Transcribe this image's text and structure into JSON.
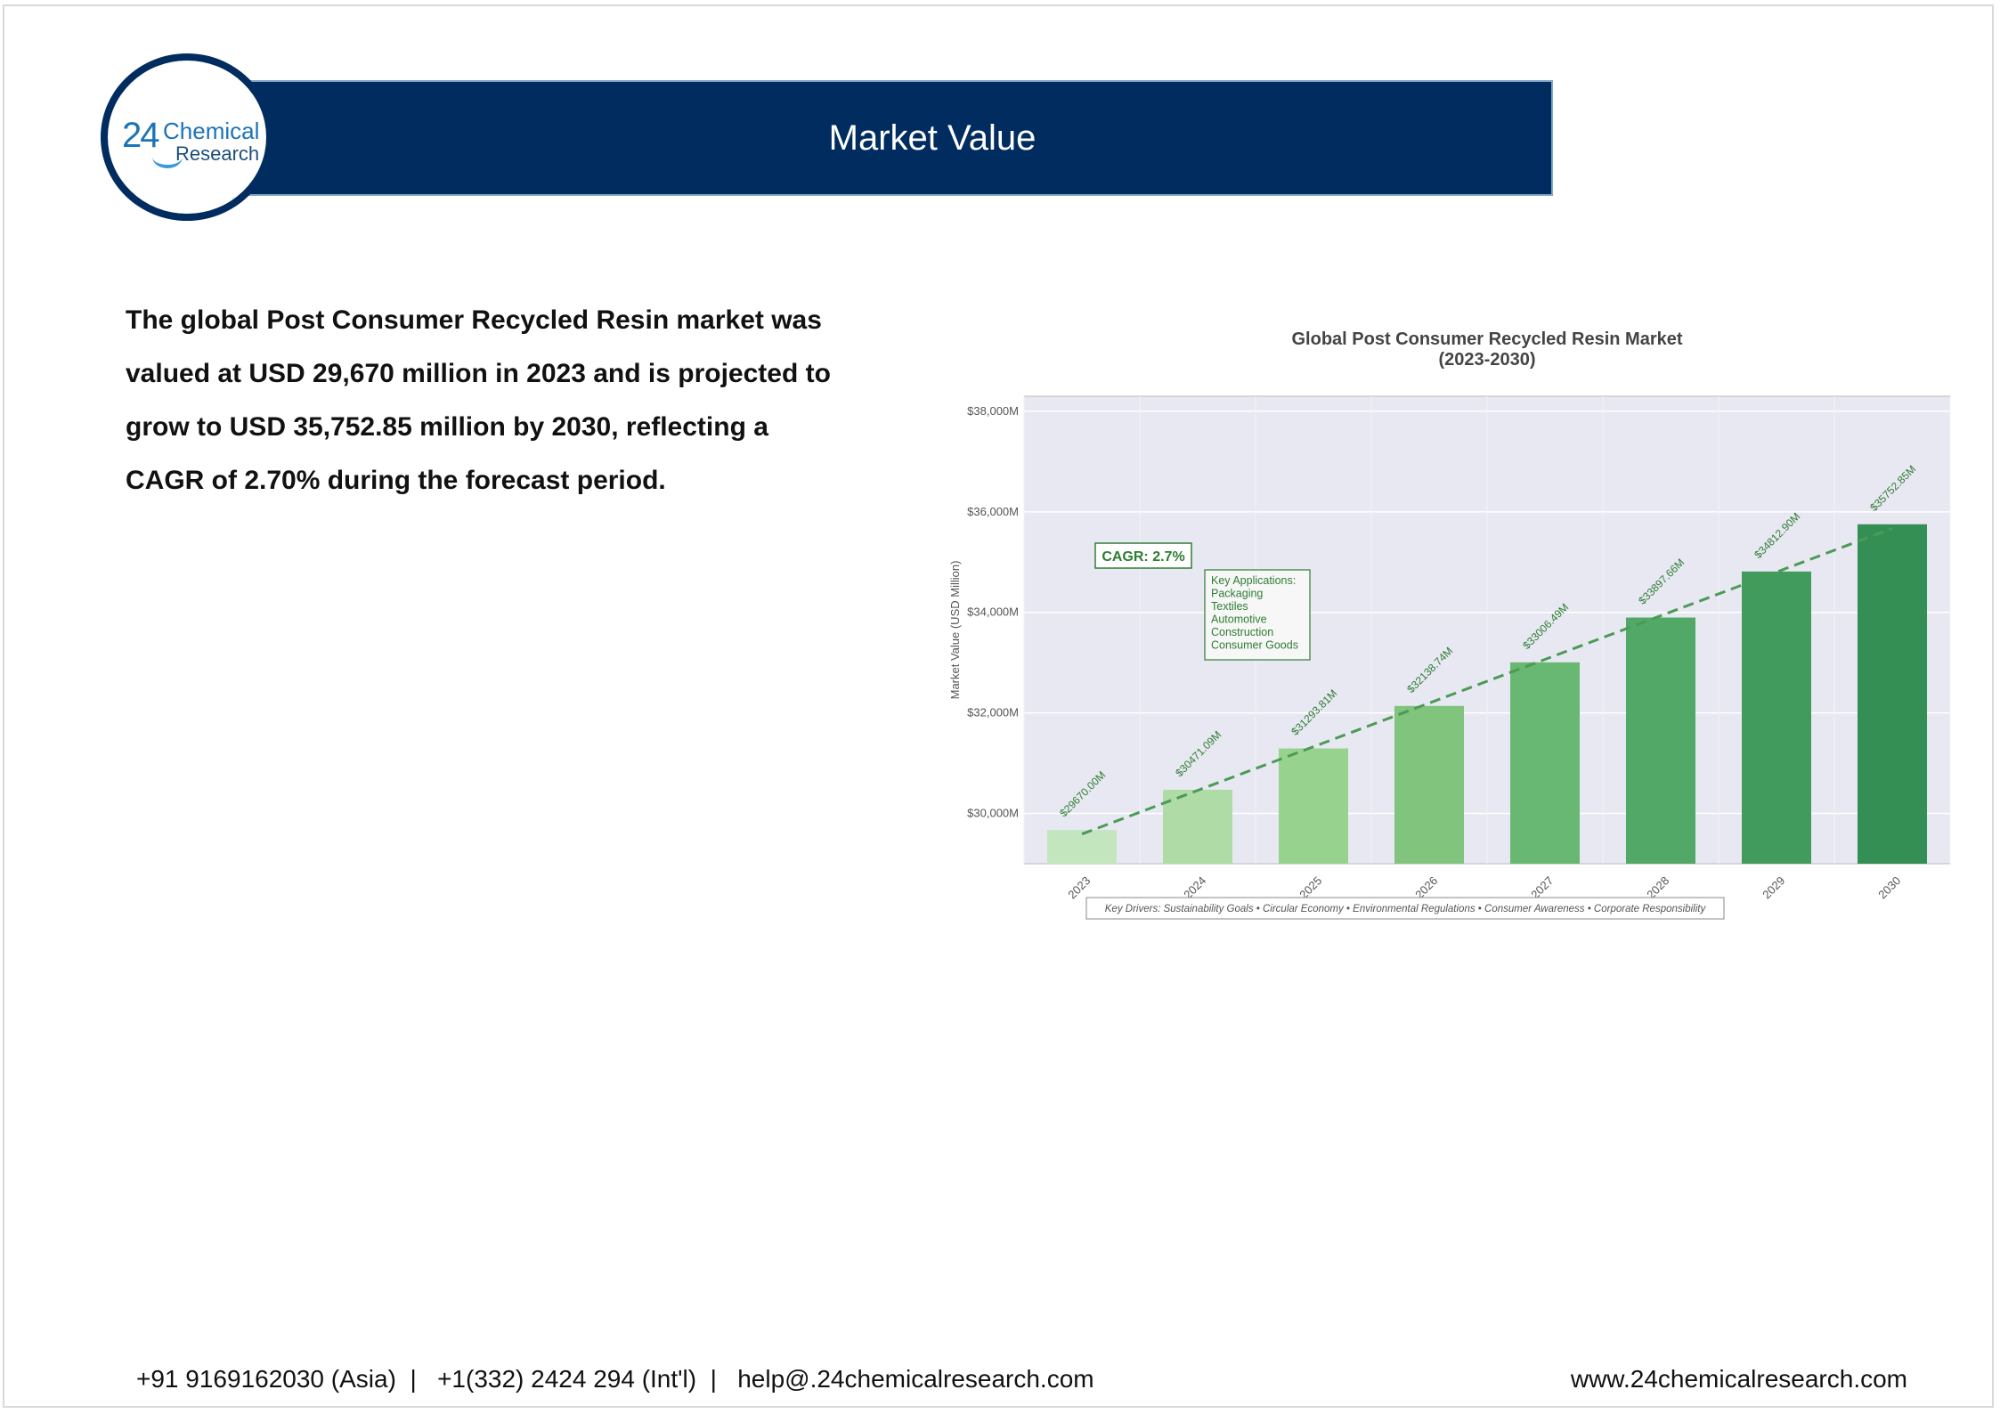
{
  "header": {
    "title": "Market Value"
  },
  "logo": {
    "number": "24",
    "word1": "Chemical",
    "word2": "Research"
  },
  "summary": "The global Post Consumer Recycled Resin market was valued at USD 29,670 million in 2023 and is projected to grow to USD 35,752.85 million by 2030, reflecting a CAGR of 2.70% during the forecast period.",
  "footer": {
    "contact": "+91 9169162030 (Asia)  |   +1(332) 2424 294 (Int'l)  |   help@.24chemicalresearch.com",
    "website": "www.24chemicalresearch.com"
  },
  "chart_data": {
    "type": "bar",
    "title": "Global Post Consumer Recycled Resin Market",
    "subtitle": "(2023-2030)",
    "ylabel": "Market Value (USD Million)",
    "xlabel": "",
    "categories": [
      "2023",
      "2024",
      "2025",
      "2026",
      "2027",
      "2028",
      "2029",
      "2030"
    ],
    "values": [
      29670.0,
      30471.09,
      31293.81,
      32138.74,
      33006.49,
      33897.66,
      34812.9,
      35752.85
    ],
    "data_labels": [
      "$29670.00M",
      "$30471.09M",
      "$31293.81M",
      "$32138.74M",
      "$33006.49M",
      "$33897.66M",
      "$34812.90M",
      "$35752.85M"
    ],
    "yticks": [
      30000,
      32000,
      34000,
      36000,
      38000
    ],
    "ytick_labels": [
      "$30,000M",
      "$32,000M",
      "$34,000M",
      "$36,000M",
      "$38,000M"
    ],
    "ylim": [
      29000,
      38300
    ],
    "grid": true,
    "trend_line": true,
    "bar_colors": [
      "#c4e6bf",
      "#aedba6",
      "#97d28f",
      "#80c47e",
      "#68b873",
      "#52a967",
      "#409b5c",
      "#348f55"
    ],
    "annotations": {
      "cagr": "CAGR: 2.7%",
      "applications_title": "Key Applications:",
      "applications": [
        "Packaging",
        "Textiles",
        "Automotive",
        "Construction",
        "Consumer Goods"
      ],
      "drivers": "Key Drivers: Sustainability Goals • Circular Economy • Environmental Regulations • Consumer Awareness • Corporate Responsibility"
    },
    "colors": {
      "plot_bg": "#e8e8f2",
      "text_green": "#2e7d32",
      "trend": "#4c9a55"
    }
  }
}
